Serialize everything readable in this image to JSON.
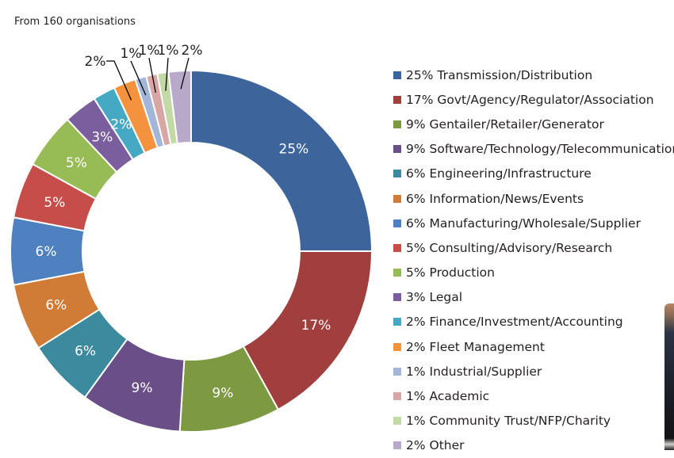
{
  "subtitle": "From 160 organisations",
  "chart_data": {
    "type": "pie",
    "donut": true,
    "title": "From 160 organisations",
    "legend_position": "right",
    "categories": [
      "Transmission/Distribution",
      "Govt/Agency/Regulator/Association",
      "Gentailer/Retailer/Generator",
      "Software/Technology/Telecommunications",
      "Engineering/Infrastructure",
      "Information/News/Events",
      "Manufacturing/Wholesale/Supplier",
      "Consulting/Advisory/Research",
      "Production",
      "Legal",
      "Finance/Investment/Accounting",
      "Fleet Management",
      "Industrial/Supplier",
      "Academic",
      "Community Trust/NFP/Charity",
      "Other"
    ],
    "values": [
      25,
      17,
      9,
      9,
      6,
      6,
      6,
      5,
      5,
      3,
      2,
      2,
      1,
      1,
      1,
      2
    ],
    "labels": [
      "25%",
      "17%",
      "9%",
      "9%",
      "6%",
      "6%",
      "6%",
      "5%",
      "5%",
      "3%",
      "2%",
      "2%",
      "1%",
      "1%",
      "1%",
      "2%"
    ],
    "legend": [
      "25% Transmission/Distribution",
      "17% Govt/Agency/Regulator/Association",
      "9% Gentailer/Retailer/Generator",
      "9% Software/Technology/Telecommunications",
      "6% Engineering/Infrastructure",
      "6% Information/News/Events",
      "6% Manufacturing/Wholesale/Supplier",
      "5% Consulting/Advisory/Research",
      "5% Production",
      "3% Legal",
      "2% Finance/Investment/Accounting",
      "2% Fleet Management",
      "1% Industrial/Supplier",
      "1% Academic",
      "1% Community Trust/NFP/Charity",
      "2% Other"
    ],
    "colors": [
      "#3d659c",
      "#a03f3d",
      "#7d9a42",
      "#6a4e88",
      "#3b8a9e",
      "#d07c36",
      "#4f80c0",
      "#c64d4a",
      "#97bb55",
      "#7b5e9e",
      "#46a9c4",
      "#f5923e",
      "#a3b6d8",
      "#d9a6a6",
      "#c3d9a6",
      "#b8a9cb"
    ]
  }
}
